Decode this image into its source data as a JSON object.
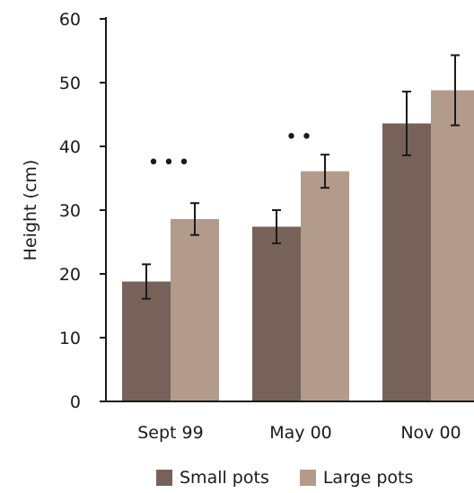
{
  "chart_data": {
    "type": "bar",
    "title": "",
    "xlabel": "",
    "ylabel": "Height (cm)",
    "ylim": [
      0,
      60
    ],
    "yticks": [
      0,
      10,
      20,
      30,
      40,
      50,
      60
    ],
    "categories": [
      "Sept 99",
      "May 00",
      "Nov 00"
    ],
    "series": [
      {
        "name": "Small pots",
        "color": "#776259",
        "values": [
          18.8,
          27.4,
          43.6
        ],
        "errors": [
          2.7,
          2.6,
          5.0
        ]
      },
      {
        "name": "Large pots",
        "color": "#b39b8b",
        "values": [
          28.6,
          36.1,
          48.8
        ],
        "errors": [
          2.5,
          2.6,
          5.5
        ]
      }
    ],
    "annotations": [
      {
        "category": "Sept 99",
        "text": "•••",
        "y": 37.5
      },
      {
        "category": "May 00",
        "text": "••",
        "y": 41.5
      }
    ],
    "legend": {
      "position": "bottom"
    }
  }
}
